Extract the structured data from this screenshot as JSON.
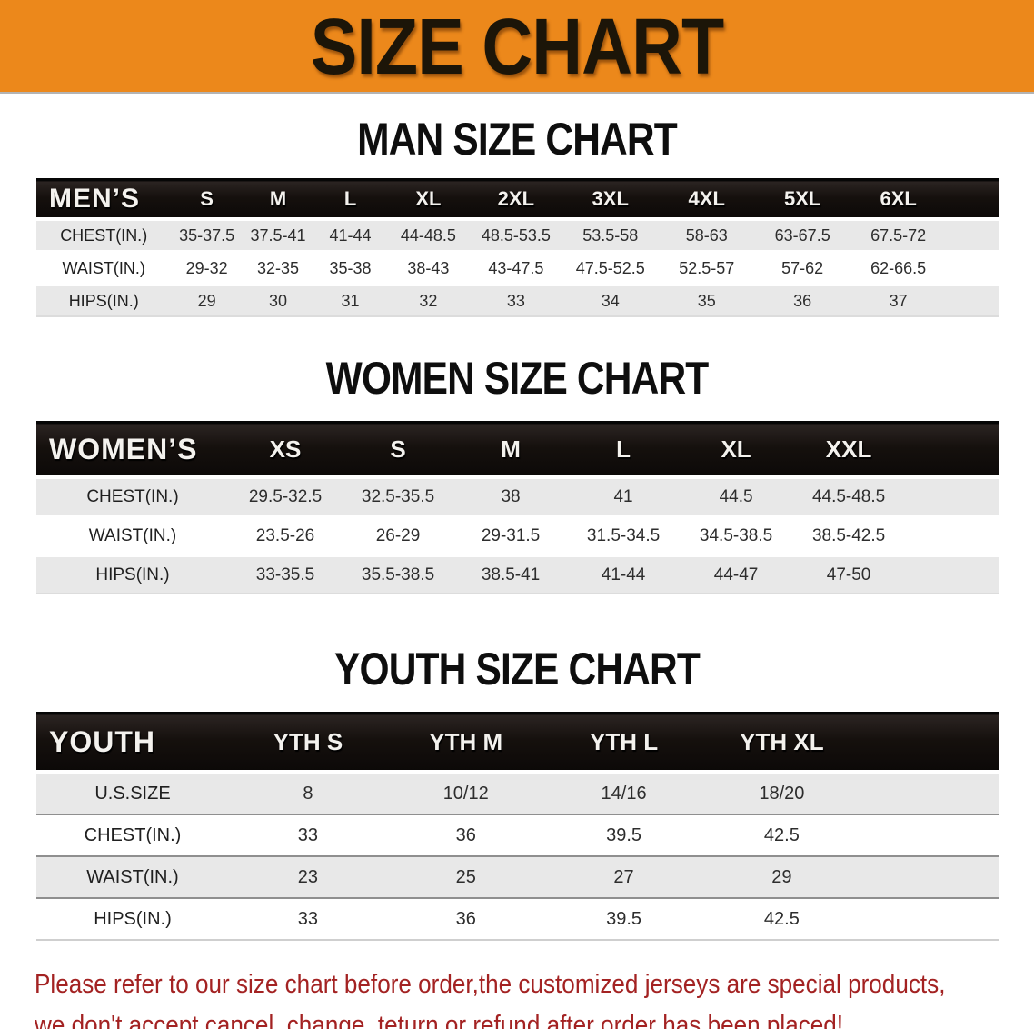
{
  "banner": {
    "title": "SIZE CHART"
  },
  "colors": {
    "banner_orange": "#ec881b",
    "header_black": "#15100d",
    "row_gray": "#e8e8e8",
    "note_red": "#a32222"
  },
  "chart_data": [
    {
      "type": "table",
      "title": "MAN SIZE CHART",
      "label": "MEN’S",
      "columns": [
        "S",
        "M",
        "L",
        "XL",
        "2XL",
        "3XL",
        "4XL",
        "5XL",
        "6XL"
      ],
      "rows": [
        {
          "label": "CHEST(IN.)",
          "values": [
            "35-37.5",
            "37.5-41",
            "41-44",
            "44-48.5",
            "48.5-53.5",
            "53.5-58",
            "58-63",
            "63-67.5",
            "67.5-72"
          ]
        },
        {
          "label": "WAIST(IN.)",
          "values": [
            "29-32",
            "32-35",
            "35-38",
            "38-43",
            "43-47.5",
            "47.5-52.5",
            "52.5-57",
            "57-62",
            "62-66.5"
          ]
        },
        {
          "label": "HIPS(IN.)",
          "values": [
            "29",
            "30",
            "31",
            "32",
            "33",
            "34",
            "35",
            "36",
            "37"
          ]
        }
      ]
    },
    {
      "type": "table",
      "title": "WOMEN SIZE CHART",
      "label": "WOMEN’S",
      "columns": [
        "XS",
        "S",
        "M",
        "L",
        "XL",
        "XXL"
      ],
      "rows": [
        {
          "label": "CHEST(IN.)",
          "values": [
            "29.5-32.5",
            "32.5-35.5",
            "38",
            "41",
            "44.5",
            "44.5-48.5"
          ]
        },
        {
          "label": "WAIST(IN.)",
          "values": [
            "23.5-26",
            "26-29",
            "29-31.5",
            "31.5-34.5",
            "34.5-38.5",
            "38.5-42.5"
          ]
        },
        {
          "label": "HIPS(IN.)",
          "values": [
            "33-35.5",
            "35.5-38.5",
            "38.5-41",
            "41-44",
            "44-47",
            "47-50"
          ]
        }
      ]
    },
    {
      "type": "table",
      "title": "YOUTH SIZE CHART",
      "label": "YOUTH",
      "columns": [
        "YTH S",
        "YTH M",
        "YTH L",
        "YTH XL"
      ],
      "rows": [
        {
          "label": "U.S.SIZE",
          "values": [
            "8",
            "10/12",
            "14/16",
            "18/20"
          ]
        },
        {
          "label": "CHEST(IN.)",
          "values": [
            "33",
            "36",
            "39.5",
            "42.5"
          ]
        },
        {
          "label": "WAIST(IN.)",
          "values": [
            "23",
            "25",
            "27",
            "29"
          ]
        },
        {
          "label": "HIPS(IN.)",
          "values": [
            "33",
            "36",
            "39.5",
            "42.5"
          ]
        }
      ]
    }
  ],
  "note": {
    "line1": "Please refer to our size chart before order,the customized jerseys are special products,",
    "line2": "we don't accept cancel, change, teturn or refund after order has been placed!"
  }
}
